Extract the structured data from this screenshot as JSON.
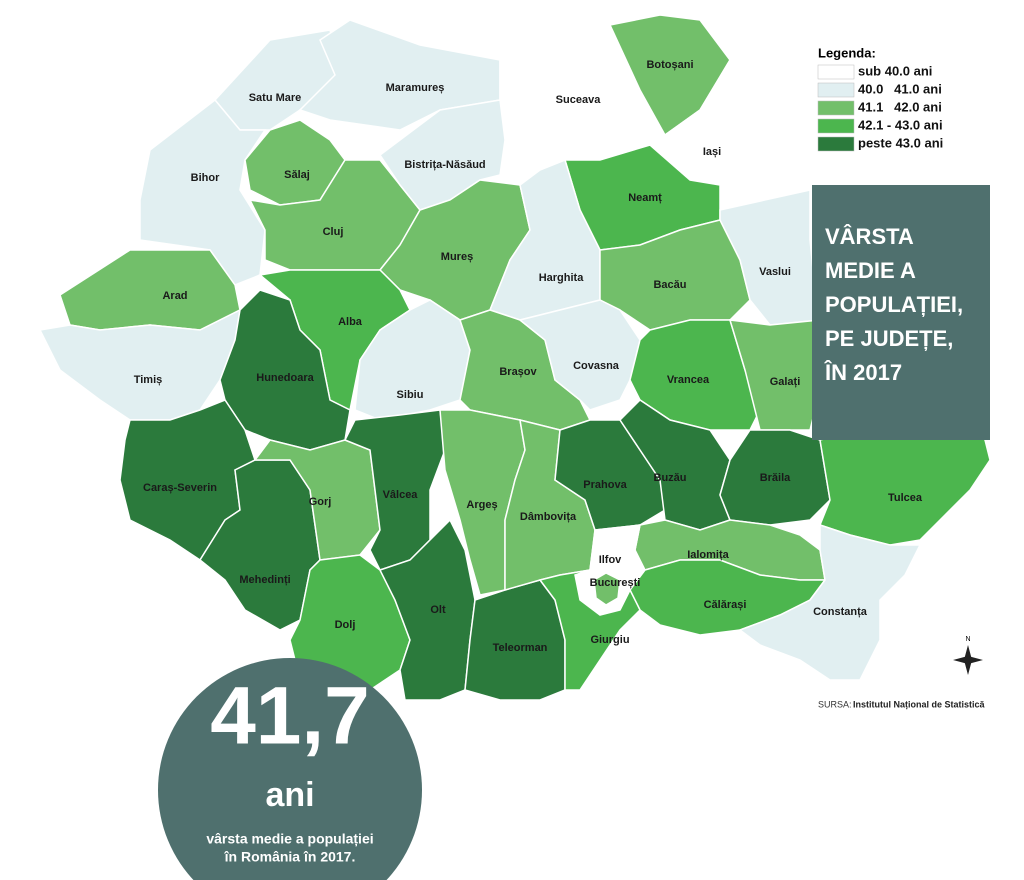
{
  "legend": {
    "title": "Legenda:",
    "items": [
      {
        "label": "sub 40.0 ani",
        "color": "#ffffff"
      },
      {
        "label": "40.0   41.0 ani",
        "color": "#e1eff1"
      },
      {
        "label": "41.1   42.0 ani",
        "color": "#72bf6a"
      },
      {
        "label": "42.1 - 43.0 ani",
        "color": "#4cb64e"
      },
      {
        "label": "peste 43.0 ani",
        "color": "#2b7a3c"
      }
    ]
  },
  "counties": [
    {
      "name": "Satu Mare",
      "class": 1
    },
    {
      "name": "Maramureș",
      "class": 1
    },
    {
      "name": "Suceava",
      "class": 0
    },
    {
      "name": "Botoșani",
      "class": 2
    },
    {
      "name": "Iași",
      "class": 0
    },
    {
      "name": "Bihor",
      "class": 1
    },
    {
      "name": "Sălaj",
      "class": 2
    },
    {
      "name": "Cluj",
      "class": 2
    },
    {
      "name": "Bistrița-Năsăud",
      "class": 1
    },
    {
      "name": "Mureș",
      "class": 2
    },
    {
      "name": "Neamț",
      "class": 3
    },
    {
      "name": "Harghita",
      "class": 1
    },
    {
      "name": "Bacău",
      "class": 2
    },
    {
      "name": "Vaslui",
      "class": 1
    },
    {
      "name": "Arad",
      "class": 2
    },
    {
      "name": "Alba",
      "class": 3
    },
    {
      "name": "Sibiu",
      "class": 1
    },
    {
      "name": "Brașov",
      "class": 2
    },
    {
      "name": "Covasna",
      "class": 1
    },
    {
      "name": "Vrancea",
      "class": 3
    },
    {
      "name": "Galați",
      "class": 2
    },
    {
      "name": "Timiș",
      "class": 1
    },
    {
      "name": "Hunedoara",
      "class": 4
    },
    {
      "name": "Caraș-Severin",
      "class": 4
    },
    {
      "name": "Mehedinți",
      "class": 4
    },
    {
      "name": "Gorj",
      "class": 2
    },
    {
      "name": "Vâlcea",
      "class": 4
    },
    {
      "name": "Dolj",
      "class": 3
    },
    {
      "name": "Olt",
      "class": 4
    },
    {
      "name": "Argeș",
      "class": 2
    },
    {
      "name": "Teleorman",
      "class": 4
    },
    {
      "name": "Dâmbovița",
      "class": 2
    },
    {
      "name": "Prahova",
      "class": 4
    },
    {
      "name": "Buzău",
      "class": 4
    },
    {
      "name": "Brăila",
      "class": 4
    },
    {
      "name": "Tulcea",
      "class": 3
    },
    {
      "name": "Ialomița",
      "class": 2
    },
    {
      "name": "Călărași",
      "class": 3
    },
    {
      "name": "Constanța",
      "class": 1
    },
    {
      "name": "Ilfov",
      "class": 0
    },
    {
      "name": "București",
      "class": 2
    },
    {
      "name": "Giurgiu",
      "class": 3
    }
  ],
  "panel": {
    "title_lines": [
      "VÂRSTA",
      "MEDIE A",
      "POPULAȚIEI,",
      "PE JUDEȚE,",
      "ÎN 2017"
    ]
  },
  "highlight": {
    "value": "41,7",
    "unit": "ani",
    "caption_lines": [
      "vârsta medie a populației",
      "în România în 2017."
    ]
  },
  "source": {
    "label": "SURSA:",
    "text": "Institutul Național de Statistică"
  },
  "compass": {
    "north": "N"
  }
}
